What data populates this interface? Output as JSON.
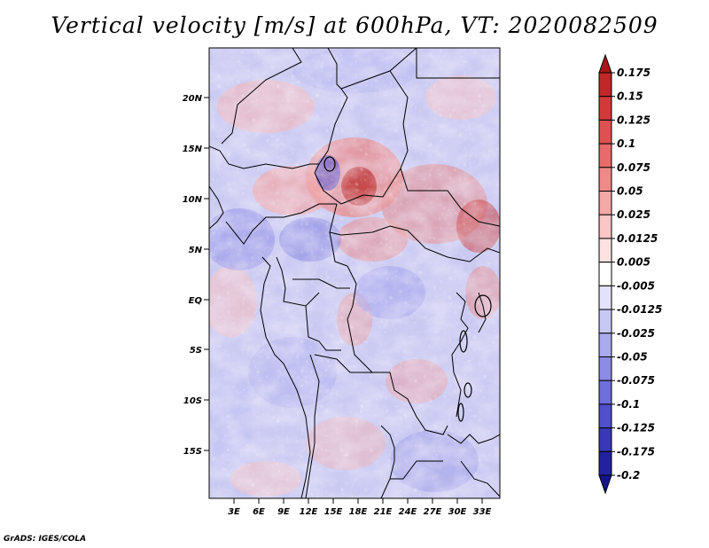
{
  "title": "Vertical velocity [m/s] at 600hPa, VT: 2020082509",
  "credit": "GrADS: IGES/COLA",
  "lat_labels": [
    "20N",
    "15N",
    "10N",
    "5N",
    "EQ",
    "5S",
    "10S",
    "15S"
  ],
  "lon_labels": [
    "3E",
    "6E",
    "9E",
    "12E",
    "15E",
    "18E",
    "21E",
    "24E",
    "27E",
    "30E",
    "33E"
  ],
  "colorbar": {
    "labels": [
      "0.175",
      "0.15",
      "0.125",
      "0.1",
      "0.075",
      "0.05",
      "0.025",
      "0.0125",
      "0.005",
      "-0.005",
      "-0.0125",
      "-0.025",
      "-0.05",
      "-0.075",
      "-0.1",
      "-0.125",
      "-0.175",
      "-0.2"
    ],
    "colors": [
      "#a81616",
      "#c02828",
      "#d23a3a",
      "#e05050",
      "#e86a6a",
      "#f08a8a",
      "#f5a8a8",
      "#fac6c6",
      "#fde2e2",
      "#ffffff",
      "#e2e2fb",
      "#c8c8f5",
      "#aaaaee",
      "#8c8ce6",
      "#6e6edc",
      "#5050cc",
      "#3838b8",
      "#2222a0",
      "#14148c"
    ]
  }
}
